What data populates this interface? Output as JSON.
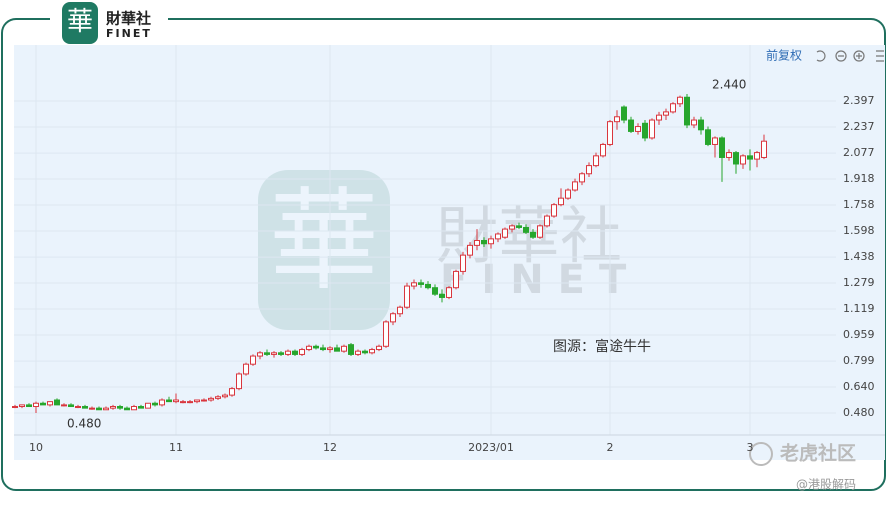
{
  "header": {
    "logo_char": "華",
    "brand": "財華社",
    "brand_en": "FINET"
  },
  "toolbar": {
    "adjust": "前复权"
  },
  "source": "图源：富途牛牛",
  "footer": {
    "community": "老虎社区",
    "handle": "@港股解码"
  },
  "chart_data": {
    "type": "candlestick",
    "up_color": "#d9363e",
    "down_color": "#27a62d",
    "ylim": [
      0.345,
      2.741
    ],
    "yticks": [
      {
        "value": 0.48,
        "label": "0.480"
      },
      {
        "value": 0.64,
        "label": "0.640"
      },
      {
        "value": 0.799,
        "label": "0.799"
      },
      {
        "value": 0.959,
        "label": "0.959"
      },
      {
        "value": 1.119,
        "label": "1.119"
      },
      {
        "value": 1.279,
        "label": "1.279"
      },
      {
        "value": 1.438,
        "label": "1.438"
      },
      {
        "value": 1.598,
        "label": "1.598"
      },
      {
        "value": 1.758,
        "label": "1.758"
      },
      {
        "value": 1.918,
        "label": "1.918"
      },
      {
        "value": 2.077,
        "label": "2.077"
      },
      {
        "value": 2.237,
        "label": "2.237"
      },
      {
        "value": 2.397,
        "label": "2.397"
      }
    ],
    "grid": true,
    "annotations": [
      {
        "text": "2.440"
      },
      {
        "text": "0.480"
      }
    ],
    "categories": [
      null,
      null,
      null,
      "10",
      null,
      null,
      null,
      null,
      null,
      null,
      null,
      null,
      null,
      null,
      null,
      null,
      null,
      null,
      null,
      null,
      null,
      null,
      null,
      "11",
      null,
      null,
      null,
      null,
      null,
      null,
      null,
      null,
      null,
      null,
      null,
      null,
      null,
      null,
      null,
      null,
      null,
      null,
      null,
      null,
      null,
      "12",
      null,
      null,
      null,
      null,
      null,
      null,
      null,
      null,
      null,
      null,
      null,
      null,
      null,
      null,
      null,
      null,
      null,
      null,
      null,
      null,
      null,
      null,
      "2023/01",
      null,
      null,
      null,
      null,
      null,
      null,
      null,
      null,
      null,
      null,
      null,
      null,
      null,
      null,
      null,
      null,
      "2",
      null,
      null,
      null,
      null,
      null,
      null,
      null,
      null,
      null,
      null,
      null,
      null,
      null,
      null,
      null,
      null,
      null,
      null,
      null,
      "3",
      null,
      null,
      null
    ],
    "candles": [
      [
        0.52,
        0.53,
        0.51,
        0.52
      ],
      [
        0.52,
        0.53,
        0.51,
        0.53
      ],
      [
        0.53,
        0.54,
        0.52,
        0.52
      ],
      [
        0.52,
        0.55,
        0.48,
        0.54
      ],
      [
        0.54,
        0.55,
        0.53,
        0.53
      ],
      [
        0.53,
        0.55,
        0.52,
        0.55
      ],
      [
        0.56,
        0.57,
        0.53,
        0.53
      ],
      [
        0.53,
        0.54,
        0.52,
        0.53
      ],
      [
        0.53,
        0.54,
        0.52,
        0.52
      ],
      [
        0.52,
        0.53,
        0.51,
        0.52
      ],
      [
        0.52,
        0.53,
        0.51,
        0.51
      ],
      [
        0.51,
        0.52,
        0.5,
        0.51
      ],
      [
        0.51,
        0.52,
        0.5,
        0.5
      ],
      [
        0.5,
        0.52,
        0.5,
        0.51
      ],
      [
        0.51,
        0.53,
        0.5,
        0.52
      ],
      [
        0.52,
        0.53,
        0.5,
        0.51
      ],
      [
        0.51,
        0.52,
        0.5,
        0.5
      ],
      [
        0.5,
        0.53,
        0.5,
        0.52
      ],
      [
        0.52,
        0.53,
        0.51,
        0.51
      ],
      [
        0.51,
        0.54,
        0.51,
        0.54
      ],
      [
        0.54,
        0.55,
        0.52,
        0.53
      ],
      [
        0.53,
        0.57,
        0.52,
        0.56
      ],
      [
        0.56,
        0.58,
        0.55,
        0.55
      ],
      [
        0.55,
        0.6,
        0.54,
        0.56
      ],
      [
        0.55,
        0.56,
        0.54,
        0.55
      ],
      [
        0.55,
        0.56,
        0.54,
        0.55
      ],
      [
        0.55,
        0.56,
        0.54,
        0.56
      ],
      [
        0.56,
        0.57,
        0.55,
        0.56
      ],
      [
        0.56,
        0.58,
        0.55,
        0.57
      ],
      [
        0.57,
        0.59,
        0.56,
        0.58
      ],
      [
        0.58,
        0.6,
        0.57,
        0.59
      ],
      [
        0.59,
        0.64,
        0.58,
        0.63
      ],
      [
        0.63,
        0.73,
        0.62,
        0.72
      ],
      [
        0.72,
        0.79,
        0.71,
        0.78
      ],
      [
        0.78,
        0.84,
        0.77,
        0.83
      ],
      [
        0.83,
        0.86,
        0.81,
        0.85
      ],
      [
        0.85,
        0.87,
        0.83,
        0.84
      ],
      [
        0.84,
        0.86,
        0.82,
        0.85
      ],
      [
        0.85,
        0.86,
        0.83,
        0.84
      ],
      [
        0.84,
        0.87,
        0.83,
        0.86
      ],
      [
        0.86,
        0.87,
        0.83,
        0.84
      ],
      [
        0.84,
        0.88,
        0.83,
        0.87
      ],
      [
        0.87,
        0.9,
        0.86,
        0.89
      ],
      [
        0.89,
        0.9,
        0.87,
        0.88
      ],
      [
        0.88,
        0.9,
        0.86,
        0.87
      ],
      [
        0.87,
        0.89,
        0.85,
        0.88
      ],
      [
        0.88,
        0.9,
        0.86,
        0.86
      ],
      [
        0.86,
        0.9,
        0.85,
        0.89
      ],
      [
        0.9,
        0.91,
        0.83,
        0.84
      ],
      [
        0.84,
        0.87,
        0.83,
        0.86
      ],
      [
        0.86,
        0.87,
        0.84,
        0.85
      ],
      [
        0.85,
        0.88,
        0.84,
        0.87
      ],
      [
        0.87,
        0.9,
        0.86,
        0.89
      ],
      [
        0.89,
        1.05,
        0.88,
        1.04
      ],
      [
        1.04,
        1.1,
        1.02,
        1.09
      ],
      [
        1.09,
        1.14,
        1.07,
        1.13
      ],
      [
        1.13,
        1.28,
        1.12,
        1.26
      ],
      [
        1.26,
        1.3,
        1.24,
        1.28
      ],
      [
        1.28,
        1.3,
        1.25,
        1.27
      ],
      [
        1.27,
        1.29,
        1.24,
        1.25
      ],
      [
        1.25,
        1.27,
        1.2,
        1.21
      ],
      [
        1.21,
        1.24,
        1.16,
        1.19
      ],
      [
        1.19,
        1.26,
        1.18,
        1.25
      ],
      [
        1.25,
        1.36,
        1.24,
        1.35
      ],
      [
        1.35,
        1.47,
        1.33,
        1.45
      ],
      [
        1.45,
        1.53,
        1.43,
        1.51
      ],
      [
        1.51,
        1.61,
        1.48,
        1.54
      ],
      [
        1.54,
        1.56,
        1.5,
        1.52
      ],
      [
        1.52,
        1.57,
        1.49,
        1.55
      ],
      [
        1.55,
        1.59,
        1.53,
        1.58
      ],
      [
        1.56,
        1.62,
        1.55,
        1.61
      ],
      [
        1.61,
        1.64,
        1.59,
        1.63
      ],
      [
        1.63,
        1.65,
        1.61,
        1.62
      ],
      [
        1.62,
        1.64,
        1.58,
        1.59
      ],
      [
        1.59,
        1.61,
        1.55,
        1.56
      ],
      [
        1.56,
        1.64,
        1.55,
        1.63
      ],
      [
        1.63,
        1.7,
        1.62,
        1.69
      ],
      [
        1.69,
        1.77,
        1.68,
        1.76
      ],
      [
        1.76,
        1.86,
        1.75,
        1.8
      ],
      [
        1.8,
        1.86,
        1.79,
        1.85
      ],
      [
        1.85,
        1.92,
        1.84,
        1.9
      ],
      [
        1.9,
        1.96,
        1.88,
        1.95
      ],
      [
        1.95,
        2.02,
        1.93,
        2.0
      ],
      [
        2.0,
        2.08,
        1.99,
        2.06
      ],
      [
        2.06,
        2.14,
        2.05,
        2.13
      ],
      [
        2.13,
        2.28,
        2.12,
        2.27
      ],
      [
        2.27,
        2.34,
        2.22,
        2.3
      ],
      [
        2.36,
        2.37,
        2.26,
        2.28
      ],
      [
        2.28,
        2.3,
        2.2,
        2.21
      ],
      [
        2.21,
        2.26,
        2.19,
        2.24
      ],
      [
        2.26,
        2.28,
        2.15,
        2.17
      ],
      [
        2.17,
        2.29,
        2.16,
        2.28
      ],
      [
        2.28,
        2.33,
        2.25,
        2.31
      ],
      [
        2.31,
        2.35,
        2.28,
        2.33
      ],
      [
        2.33,
        2.39,
        2.32,
        2.38
      ],
      [
        2.38,
        2.43,
        2.36,
        2.42
      ],
      [
        2.42,
        2.44,
        2.23,
        2.25
      ],
      [
        2.25,
        2.3,
        2.23,
        2.28
      ],
      [
        2.28,
        2.3,
        2.19,
        2.22
      ],
      [
        2.22,
        2.24,
        2.12,
        2.13
      ],
      [
        2.13,
        2.18,
        2.05,
        2.17
      ],
      [
        2.17,
        2.18,
        1.9,
        2.05
      ],
      [
        2.05,
        2.1,
        2.03,
        2.08
      ],
      [
        2.08,
        2.09,
        1.95,
        2.01
      ],
      [
        2.01,
        2.07,
        1.98,
        2.06
      ],
      [
        2.06,
        2.1,
        1.97,
        2.04
      ],
      [
        2.04,
        2.09,
        1.99,
        2.08
      ],
      [
        2.05,
        2.19,
        2.04,
        2.15
      ]
    ]
  }
}
